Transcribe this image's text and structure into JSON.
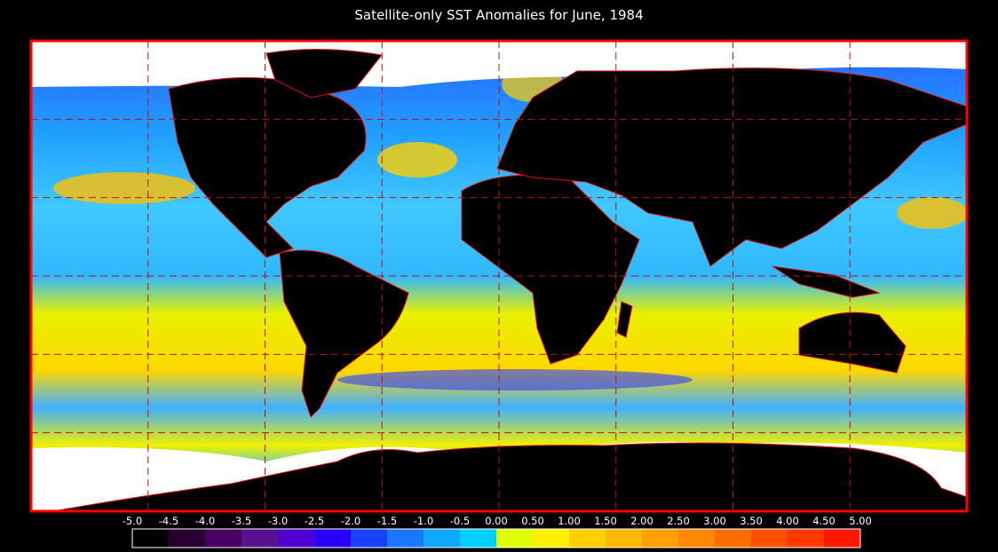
{
  "title": "Satellite-only SST Anomalies for June, 1984",
  "colorbar": {
    "labels": [
      "-5.0",
      "-4.5",
      "-4.0",
      "-3.5",
      "-3.0",
      "-2.5",
      "-2.0",
      "-1.5",
      "-1.0",
      "-0.5",
      "0.00",
      "0.50",
      "1.00",
      "1.50",
      "2.00",
      "2.50",
      "3.00",
      "3.50",
      "4.00",
      "4.50",
      "5.00"
    ],
    "colors": [
      "#000000",
      "#2a0030",
      "#4a0060",
      "#5a1090",
      "#5000d0",
      "#2800ff",
      "#1840ff",
      "#1878ff",
      "#10a8ff",
      "#00d0ff",
      "#e0ff00",
      "#fff000",
      "#ffd000",
      "#ffb800",
      "#ffa000",
      "#ff8800",
      "#ff6c00",
      "#ff5000",
      "#ff3800",
      "#ff1800"
    ]
  }
}
